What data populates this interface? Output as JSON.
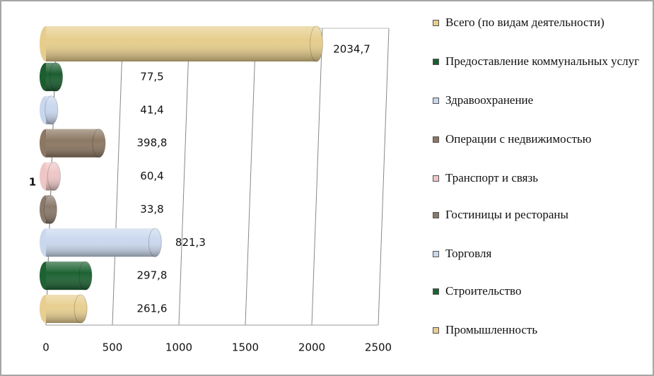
{
  "chart_data": {
    "type": "bar",
    "orientation": "horizontal",
    "style": "cylinder",
    "categories": [
      "1"
    ],
    "series": [
      {
        "name": "Всего (по видам деятельности)",
        "color": "#e6cd8c",
        "values": [
          2034.7
        ],
        "value_labels": [
          "2034,7"
        ]
      },
      {
        "name": "Предоставление коммунальных услуг",
        "color": "#1b5e30",
        "values": [
          77.5
        ],
        "value_labels": [
          "77,5"
        ]
      },
      {
        "name": "Здравоохранение",
        "color": "#c8d7ee",
        "values": [
          41.4
        ],
        "value_labels": [
          "41,4"
        ]
      },
      {
        "name": "Операции с недвижимостью",
        "color": "#8c7762",
        "values": [
          398.8
        ],
        "value_labels": [
          "398,8"
        ]
      },
      {
        "name": "Транспорт и связь",
        "color": "#efc6c6",
        "values": [
          60.4
        ],
        "value_labels": [
          "60,4"
        ]
      },
      {
        "name": "Гостиницы и рестораны",
        "color": "#8a7a6a",
        "values": [
          33.8
        ],
        "value_labels": [
          "33,8"
        ]
      },
      {
        "name": "Торговля",
        "color": "#cad8ee",
        "values": [
          821.3
        ],
        "value_labels": [
          "821,3"
        ]
      },
      {
        "name": "Строительство",
        "color": "#1d6232",
        "values": [
          297.8
        ],
        "value_labels": [
          "297,8"
        ]
      },
      {
        "name": "Промышленность",
        "color": "#e8cf90",
        "values": [
          261.6
        ],
        "value_labels": [
          "261,6"
        ]
      }
    ],
    "xlim": [
      0,
      2500
    ],
    "xticks": [
      0,
      500,
      1000,
      1500,
      2000,
      2500
    ],
    "grid": true
  }
}
